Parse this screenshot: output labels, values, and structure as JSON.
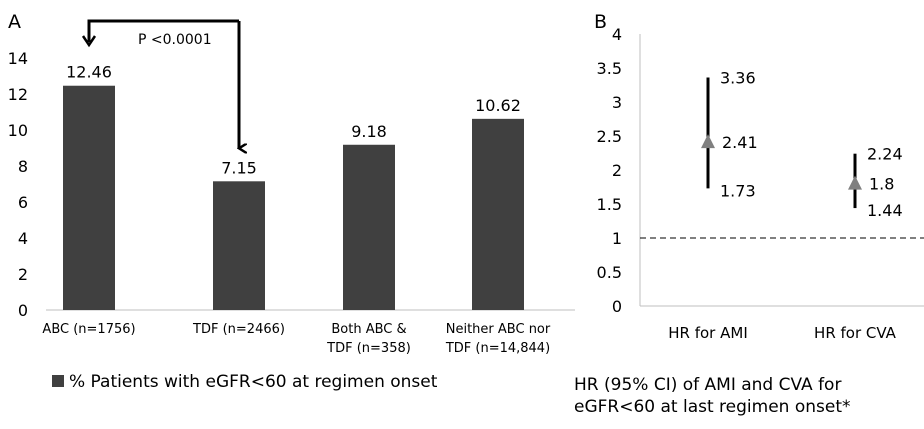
{
  "colors": {
    "bar": "#404040",
    "marker": "#808080",
    "line": "#000000",
    "axis": "#bfbfbf"
  },
  "chart_data": [
    {
      "panel_label": "A",
      "type": "bar",
      "categories": [
        [
          "ABC (n=1756)"
        ],
        [
          "TDF (n=2466)"
        ],
        [
          "Both ABC &",
          "TDF (n=358)"
        ],
        [
          "Neither ABC nor",
          "TDF (n=14,844)"
        ]
      ],
      "values": [
        12.46,
        7.15,
        9.18,
        10.62
      ],
      "data_labels": [
        "12.46",
        "7.15",
        "9.18",
        "10.62"
      ],
      "yticks": [
        "0",
        "2",
        "4",
        "6",
        "8",
        "10",
        "12",
        "14"
      ],
      "ylim": [
        0,
        14
      ],
      "legend": {
        "label": "% Patients with eGFR<60 at regimen onset",
        "position": "bottom"
      },
      "annotation": {
        "text": "P <0.0001",
        "from": "ABC (n=1756)",
        "to": "TDF (n=2466)"
      },
      "grid": false
    },
    {
      "panel_label": "B",
      "type": "scatter",
      "categories": [
        "HR for AMI",
        "HR for CVA"
      ],
      "points": [
        {
          "category": "HR for AMI",
          "hr": 2.41,
          "low": 1.73,
          "high": 3.36,
          "hr_label": "2.41",
          "low_label": "1.73",
          "high_label": "3.36"
        },
        {
          "category": "HR for CVA",
          "hr": 1.8,
          "low": 1.44,
          "high": 2.24,
          "hr_label": "1.8",
          "low_label": "1.44",
          "high_label": "2.24"
        }
      ],
      "reference_line": 1,
      "yticks": [
        "0",
        "0.5",
        "1",
        "1.5",
        "2",
        "2.5",
        "3",
        "3.5",
        "4"
      ],
      "ylim": [
        0,
        4
      ],
      "caption": [
        "HR (95% CI) of AMI and CVA for",
        "eGFR<60  at last regimen onset*"
      ],
      "grid": false
    }
  ]
}
